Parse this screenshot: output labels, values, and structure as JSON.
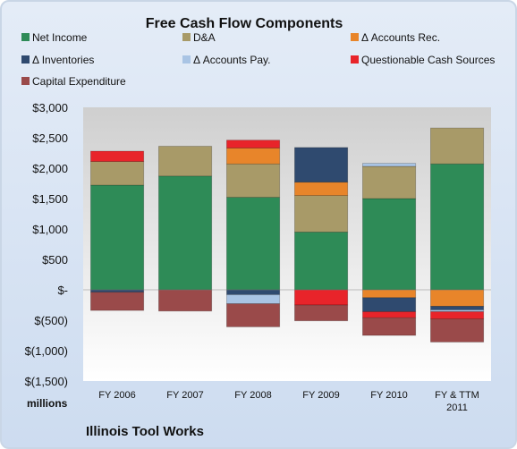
{
  "chart_data": {
    "type": "bar",
    "stacked": true,
    "title": "Free Cash Flow Components",
    "units_label": "millions",
    "company": "Illinois Tool Works",
    "categories": [
      "FY 2006",
      "FY 2007",
      "FY 2008",
      "FY 2009",
      "FY 2010",
      "FY & TTM 2011"
    ],
    "ylim": [
      -1500,
      3000
    ],
    "yticks": [
      3000,
      2500,
      2000,
      1500,
      1000,
      500,
      0,
      -500,
      -1000,
      -1500
    ],
    "ytick_labels": [
      "$3,000",
      "$2,500",
      "$2,000",
      "$1,500",
      "$1,000",
      "$500",
      "$-",
      "$(500)",
      "$(1,000)",
      "$(1,500)"
    ],
    "legend_placement": "top",
    "grid": false,
    "series": [
      {
        "name": "Net Income",
        "color": "#2e8b57",
        "values": [
          1720,
          1870,
          1520,
          950,
          1500,
          2070
        ]
      },
      {
        "name": "D&A",
        "color": "#a89a68",
        "values": [
          390,
          490,
          550,
          600,
          530,
          590
        ]
      },
      {
        "name": "Δ Accounts Rec.",
        "color": "#e8852a",
        "values": [
          0,
          0,
          260,
          220,
          -130,
          -270
        ]
      },
      {
        "name": "Δ Inventories",
        "color": "#2f4a6f",
        "values": [
          -40,
          0,
          -80,
          570,
          -230,
          -60
        ]
      },
      {
        "name": "Δ Accounts Pay.",
        "color": "#a9c4e4",
        "values": [
          0,
          0,
          -150,
          0,
          50,
          -30
        ]
      },
      {
        "name": "Questionable Cash Sources",
        "color": "#e8242a",
        "values": [
          170,
          0,
          130,
          -250,
          -100,
          -120
        ]
      },
      {
        "name": "Capital Expenditure",
        "color": "#9a4a4a",
        "values": [
          -300,
          -350,
          -380,
          -260,
          -290,
          -380
        ]
      }
    ]
  }
}
